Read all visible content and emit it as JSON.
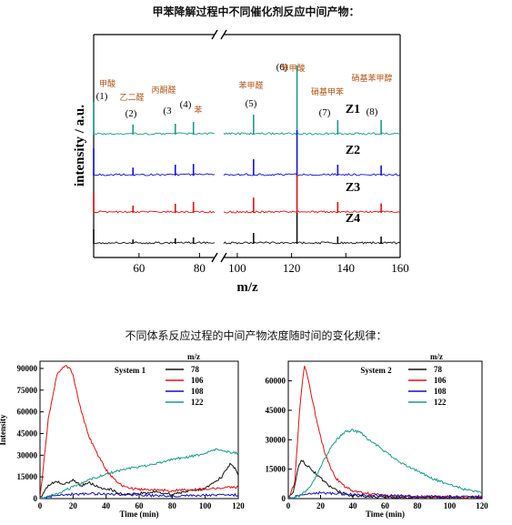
{
  "titles": {
    "top": "甲苯降解过程中不同催化剂反应中间产物：",
    "bottom": "不同体系反应过程的中间产物浓度随时间的变化规律："
  },
  "chart_data": [
    {
      "type": "line",
      "kind": "mass-spectrum",
      "xlabel": "m/z",
      "ylabel": "intensity / a.u.",
      "x_ticks": [
        60,
        80,
        100,
        120,
        140,
        160
      ],
      "xlim_left": [
        45,
        85
      ],
      "xlim_right": [
        95,
        160
      ],
      "axis_break": true,
      "series_names": [
        "Z1",
        "Z2",
        "Z3",
        "Z4"
      ],
      "colors": [
        "#1a9a8a",
        "#1010e0",
        "#e01010",
        "#111111"
      ],
      "peaks": [
        {
          "x": 45,
          "h": [
            0.9,
            0.75,
            0.55,
            0.4
          ]
        },
        {
          "x": 58,
          "h": [
            0.28,
            0.22,
            0.2,
            0.12
          ]
        },
        {
          "x": 72,
          "h": [
            0.3,
            0.3,
            0.25,
            0.15
          ]
        },
        {
          "x": 78,
          "h": [
            0.35,
            0.32,
            0.3,
            0.18
          ]
        },
        {
          "x": 106,
          "h": [
            0.55,
            0.45,
            0.42,
            0.3
          ]
        },
        {
          "x": 122,
          "h": [
            1.9,
            1.25,
            1.05,
            0.85
          ]
        },
        {
          "x": 137,
          "h": [
            0.4,
            0.3,
            0.3,
            0.2
          ]
        },
        {
          "x": 153,
          "h": [
            0.4,
            0.28,
            0.26,
            0.2
          ]
        }
      ],
      "peak_labels": [
        {
          "id": "(1)",
          "name": "甲酸"
        },
        {
          "id": "(2)",
          "name": "乙二醛"
        },
        {
          "id": "(3",
          "name": "丙酮醛"
        },
        {
          "id": "(4)",
          "name": "苯"
        },
        {
          "id": "(5)",
          "name": "苯甲醛"
        },
        {
          "id": "(6)",
          "name": "苯甲酸"
        },
        {
          "id": "(7)",
          "name": "硝基甲苯"
        },
        {
          "id": "(8)",
          "name": "硝基苯甲醇"
        }
      ]
    },
    {
      "type": "line",
      "title": "System 1",
      "legend_title": "m/z",
      "xlabel": "Time (min)",
      "ylabel": "Intensity",
      "xlim": [
        0,
        120
      ],
      "ylim": [
        0,
        95000
      ],
      "x_ticks": [
        0,
        20,
        40,
        60,
        80,
        100,
        120
      ],
      "y_ticks": [
        0,
        15000,
        30000,
        45000,
        60000,
        75000,
        90000
      ],
      "series": [
        {
          "name": "78",
          "color": "#111111",
          "x": [
            0,
            5,
            10,
            15,
            20,
            25,
            30,
            35,
            40,
            45,
            50,
            60,
            70,
            80,
            90,
            100,
            110,
            115,
            118,
            120
          ],
          "y": [
            0,
            9000,
            12000,
            10000,
            13000,
            9000,
            11000,
            8000,
            7000,
            5500,
            3000,
            3500,
            5000,
            3000,
            5000,
            7000,
            15000,
            24000,
            21000,
            16000
          ]
        },
        {
          "name": "106",
          "color": "#e01010",
          "x": [
            0,
            5,
            10,
            15,
            18,
            20,
            25,
            30,
            35,
            40,
            45,
            50,
            55,
            60,
            70,
            80,
            90,
            100,
            110,
            120
          ],
          "y": [
            0,
            55000,
            85000,
            92000,
            90000,
            85000,
            60000,
            42000,
            30000,
            20000,
            13000,
            9000,
            7000,
            6500,
            6000,
            5500,
            6000,
            6500,
            7500,
            8000
          ]
        },
        {
          "name": "108",
          "color": "#1010c0",
          "x": [
            0,
            10,
            20,
            30,
            40,
            50,
            60,
            70,
            80,
            90,
            100,
            110,
            120
          ],
          "y": [
            0,
            2000,
            3000,
            3500,
            3000,
            3000,
            2500,
            2000,
            2000,
            2000,
            2500,
            2500,
            2500
          ]
        },
        {
          "name": "122",
          "color": "#1a9a8a",
          "x": [
            0,
            10,
            20,
            30,
            40,
            50,
            60,
            70,
            80,
            90,
            100,
            105,
            110,
            115,
            120
          ],
          "y": [
            0,
            3000,
            8000,
            13000,
            17000,
            20000,
            22000,
            24000,
            27000,
            29000,
            31000,
            34000,
            33500,
            32000,
            31500
          ]
        }
      ]
    },
    {
      "type": "line",
      "title": "System 2",
      "legend_title": "m/z",
      "xlabel": "Time (min)",
      "ylabel": "Intensity",
      "xlim": [
        0,
        120
      ],
      "ylim": [
        0,
        70000
      ],
      "x_ticks": [
        0,
        20,
        40,
        60,
        80,
        100,
        120
      ],
      "y_ticks": [
        0,
        15000,
        30000,
        45000,
        60000
      ],
      "series": [
        {
          "name": "78",
          "color": "#111111",
          "x": [
            0,
            3,
            6,
            8,
            10,
            14,
            18,
            22,
            26,
            30,
            35,
            40,
            50,
            60,
            80,
            100,
            120
          ],
          "y": [
            0,
            3000,
            15000,
            20000,
            18000,
            15000,
            12000,
            9000,
            6000,
            4000,
            2500,
            1500,
            1000,
            800,
            600,
            500,
            500
          ]
        },
        {
          "name": "106",
          "color": "#e01010",
          "x": [
            0,
            4,
            7,
            9,
            10,
            12,
            15,
            18,
            22,
            26,
            30,
            35,
            40,
            50,
            60,
            80,
            100,
            120
          ],
          "y": [
            0,
            8000,
            45000,
            62000,
            68000,
            62000,
            50000,
            38000,
            25000,
            16000,
            10000,
            6000,
            4000,
            2500,
            1500,
            1000,
            800,
            800
          ]
        },
        {
          "name": "108",
          "color": "#1010c0",
          "x": [
            0,
            10,
            20,
            30,
            40,
            60,
            80,
            100,
            120
          ],
          "y": [
            0,
            2000,
            3000,
            2500,
            2000,
            1500,
            1200,
            1000,
            1000
          ]
        },
        {
          "name": "122",
          "color": "#1a9a8a",
          "x": [
            0,
            5,
            10,
            15,
            20,
            25,
            30,
            35,
            40,
            45,
            50,
            60,
            70,
            80,
            90,
            100,
            110,
            120
          ],
          "y": [
            0,
            1000,
            3000,
            8000,
            16000,
            24000,
            30000,
            34000,
            35000,
            33500,
            30000,
            24000,
            18000,
            14000,
            10000,
            7000,
            4500,
            3000
          ]
        }
      ]
    }
  ]
}
